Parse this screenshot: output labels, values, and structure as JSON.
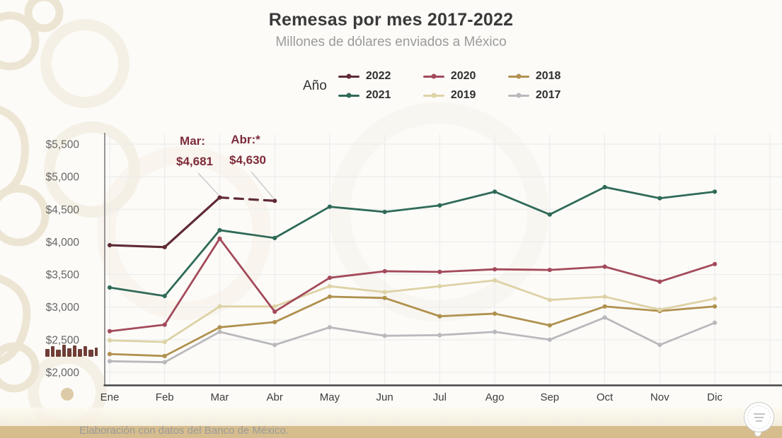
{
  "header": {
    "title": "Remesas por mes 2017-2022",
    "subtitle": "Millones de dólares enviados a México"
  },
  "legend": {
    "label": "Año",
    "rows": [
      [
        "2022",
        "2020",
        "2018"
      ],
      [
        "2021",
        "2019",
        "2017"
      ]
    ],
    "position": "top-center"
  },
  "chart_data": {
    "type": "line",
    "title": "Remesas por mes 2017-2022",
    "subtitle": "Millones de dólares enviados a México",
    "categories": [
      "Ene",
      "Feb",
      "Mar",
      "Abr",
      "May",
      "Jun",
      "Jul",
      "Ago",
      "Sep",
      "Oct",
      "Nov",
      "Dic"
    ],
    "ylim": [
      2000,
      5500
    ],
    "ytick_step": 500,
    "y_ticks": [
      {
        "value": 5500,
        "label": "$5,500"
      },
      {
        "value": 5000,
        "label": "$5,000"
      },
      {
        "value": 4500,
        "label": "$4,500"
      },
      {
        "value": 4000,
        "label": "$4,000"
      },
      {
        "value": 3500,
        "label": "$3,500"
      },
      {
        "value": 3000,
        "label": "$3,000"
      },
      {
        "value": 2500,
        "label": "$2,500"
      },
      {
        "value": 2000,
        "label": "$2,000"
      }
    ],
    "grid": true,
    "draw_order": [
      "2017",
      "2018",
      "2019",
      "2020",
      "2021",
      "2022"
    ],
    "series": [
      {
        "name": "2022",
        "color": "#602a36",
        "values": [
          3950,
          3920,
          4681,
          4630,
          null,
          null,
          null,
          null,
          null,
          null,
          null,
          null
        ],
        "dashed_segments": [
          [
            2,
            3
          ]
        ]
      },
      {
        "name": "2021",
        "color": "#2f6a58",
        "values": [
          3300,
          3170,
          4180,
          4060,
          4540,
          4460,
          4560,
          4770,
          4420,
          4840,
          4670,
          4770
        ]
      },
      {
        "name": "2020",
        "color": "#a34a5a",
        "values": [
          2630,
          2730,
          4050,
          2930,
          3450,
          3550,
          3540,
          3580,
          3570,
          3620,
          3390,
          3660
        ]
      },
      {
        "name": "2019",
        "color": "#ddd2a6",
        "values": [
          2490,
          2465,
          3010,
          3010,
          3320,
          3230,
          3320,
          3410,
          3110,
          3160,
          2960,
          3130
        ]
      },
      {
        "name": "2018",
        "color": "#b0914f",
        "values": [
          2280,
          2250,
          2690,
          2770,
          3160,
          3140,
          2860,
          2900,
          2720,
          3010,
          2940,
          3010
        ]
      },
      {
        "name": "2017",
        "color": "#b9b9bd",
        "values": [
          2170,
          2155,
          2620,
          2420,
          2690,
          2560,
          2570,
          2620,
          2500,
          2840,
          2420,
          2760
        ]
      }
    ],
    "annotations": [
      {
        "label": "Mar:",
        "value": "$4,681",
        "series": "2022",
        "month_index": 2
      },
      {
        "label": "Abr:*",
        "value": "$4,630",
        "series": "2022",
        "month_index": 3
      }
    ]
  },
  "footer": {
    "source": "Elaboración con datos del Banco de México."
  },
  "colors": {
    "annotation_text": "#7e2b3a",
    "footer_band": "#d6bd8e",
    "axis_bottom": "#454545",
    "axis_left": "#969696",
    "grid": "#ececec",
    "watermark_cream": "#ece3cf"
  }
}
